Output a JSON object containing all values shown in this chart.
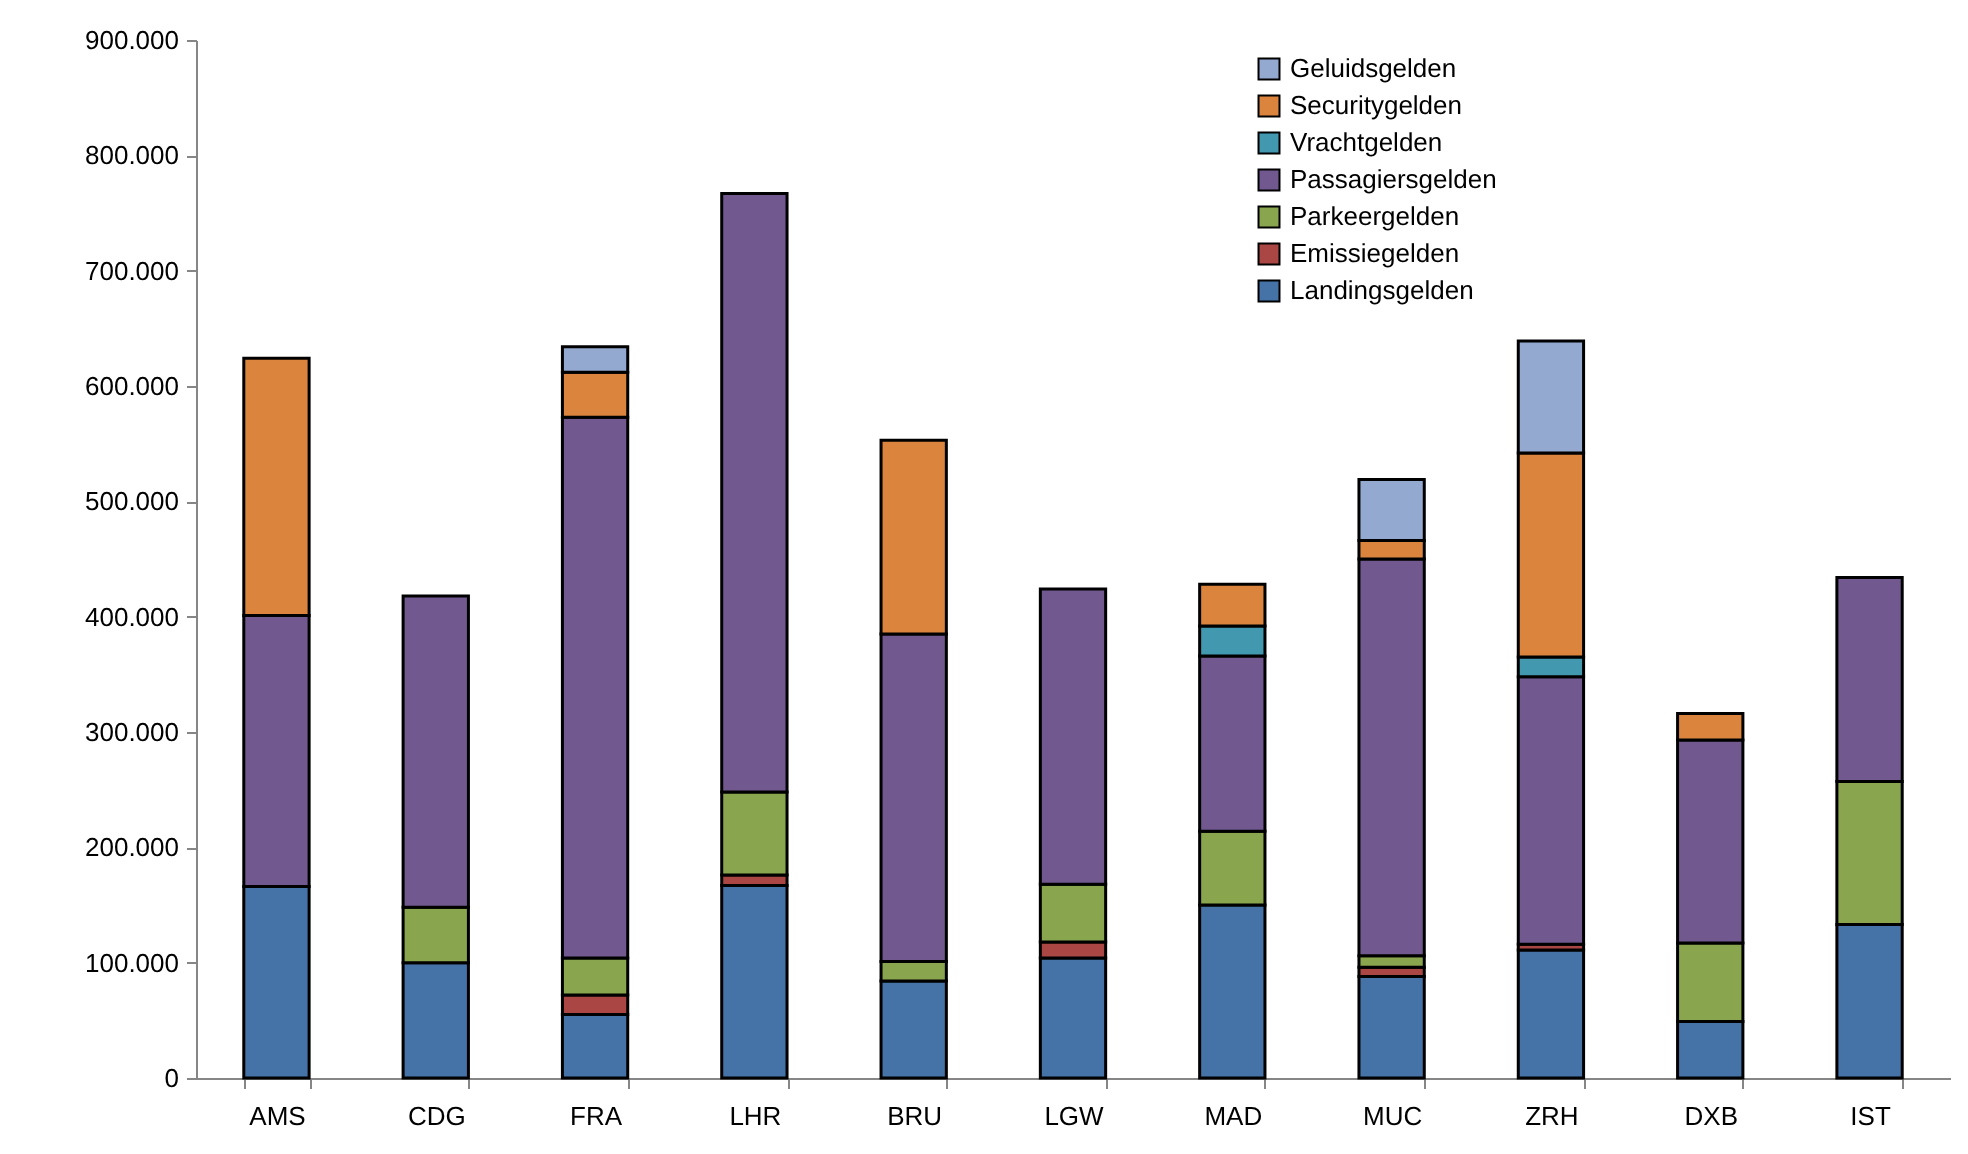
{
  "chart_data": {
    "type": "bar",
    "stacked": true,
    "legend": "top right",
    "grid": false,
    "categories": [
      "AMS",
      "CDG",
      "FRA",
      "LHR",
      "BRU",
      "LGW",
      "MAD",
      "MUC",
      "ZRH",
      "DXB",
      "IST"
    ],
    "ylim": [
      0,
      900000
    ],
    "yticks": [
      {
        "value": 0,
        "label": "0"
      },
      {
        "value": 100000,
        "label": "100.000"
      },
      {
        "value": 200000,
        "label": "200.000"
      },
      {
        "value": 300000,
        "label": "300.000"
      },
      {
        "value": 400000,
        "label": "400.000"
      },
      {
        "value": 500000,
        "label": "500.000"
      },
      {
        "value": 600000,
        "label": "600.000"
      },
      {
        "value": 700000,
        "label": "700.000"
      },
      {
        "value": 800000,
        "label": "800.000"
      },
      {
        "value": 900000,
        "label": "900.000"
      }
    ],
    "series": [
      {
        "name": "Landingsgelden",
        "color": "#4572a7",
        "values": [
          166000,
          100000,
          55000,
          167000,
          84000,
          104000,
          150000,
          88000,
          111000,
          49000,
          133000
        ]
      },
      {
        "name": "Emissiegelden",
        "color": "#aa4643",
        "values": [
          null,
          null,
          17000,
          9000,
          null,
          14000,
          null,
          8000,
          5000,
          null,
          null
        ]
      },
      {
        "name": "Parkeergelden",
        "color": "#89a54e",
        "values": [
          null,
          48000,
          32000,
          72000,
          17000,
          50000,
          64000,
          10000,
          null,
          68000,
          124000
        ]
      },
      {
        "name": "Passagiersgelden",
        "color": "#71588f",
        "values": [
          235000,
          270000,
          469000,
          519000,
          284000,
          256000,
          152000,
          344000,
          232000,
          176000,
          177000
        ]
      },
      {
        "name": "Vrachtgelden",
        "color": "#4198af",
        "values": [
          null,
          null,
          null,
          null,
          null,
          null,
          26000,
          null,
          17000,
          null,
          null
        ]
      },
      {
        "name": "Securitygelden",
        "color": "#db843d",
        "values": [
          223000,
          null,
          39000,
          null,
          168000,
          null,
          36000,
          16000,
          177000,
          23000,
          null
        ]
      },
      {
        "name": "Geluidsgelden",
        "color": "#93a9cf",
        "values": [
          null,
          null,
          22000,
          null,
          null,
          null,
          null,
          53000,
          97000,
          null,
          null
        ]
      }
    ]
  }
}
